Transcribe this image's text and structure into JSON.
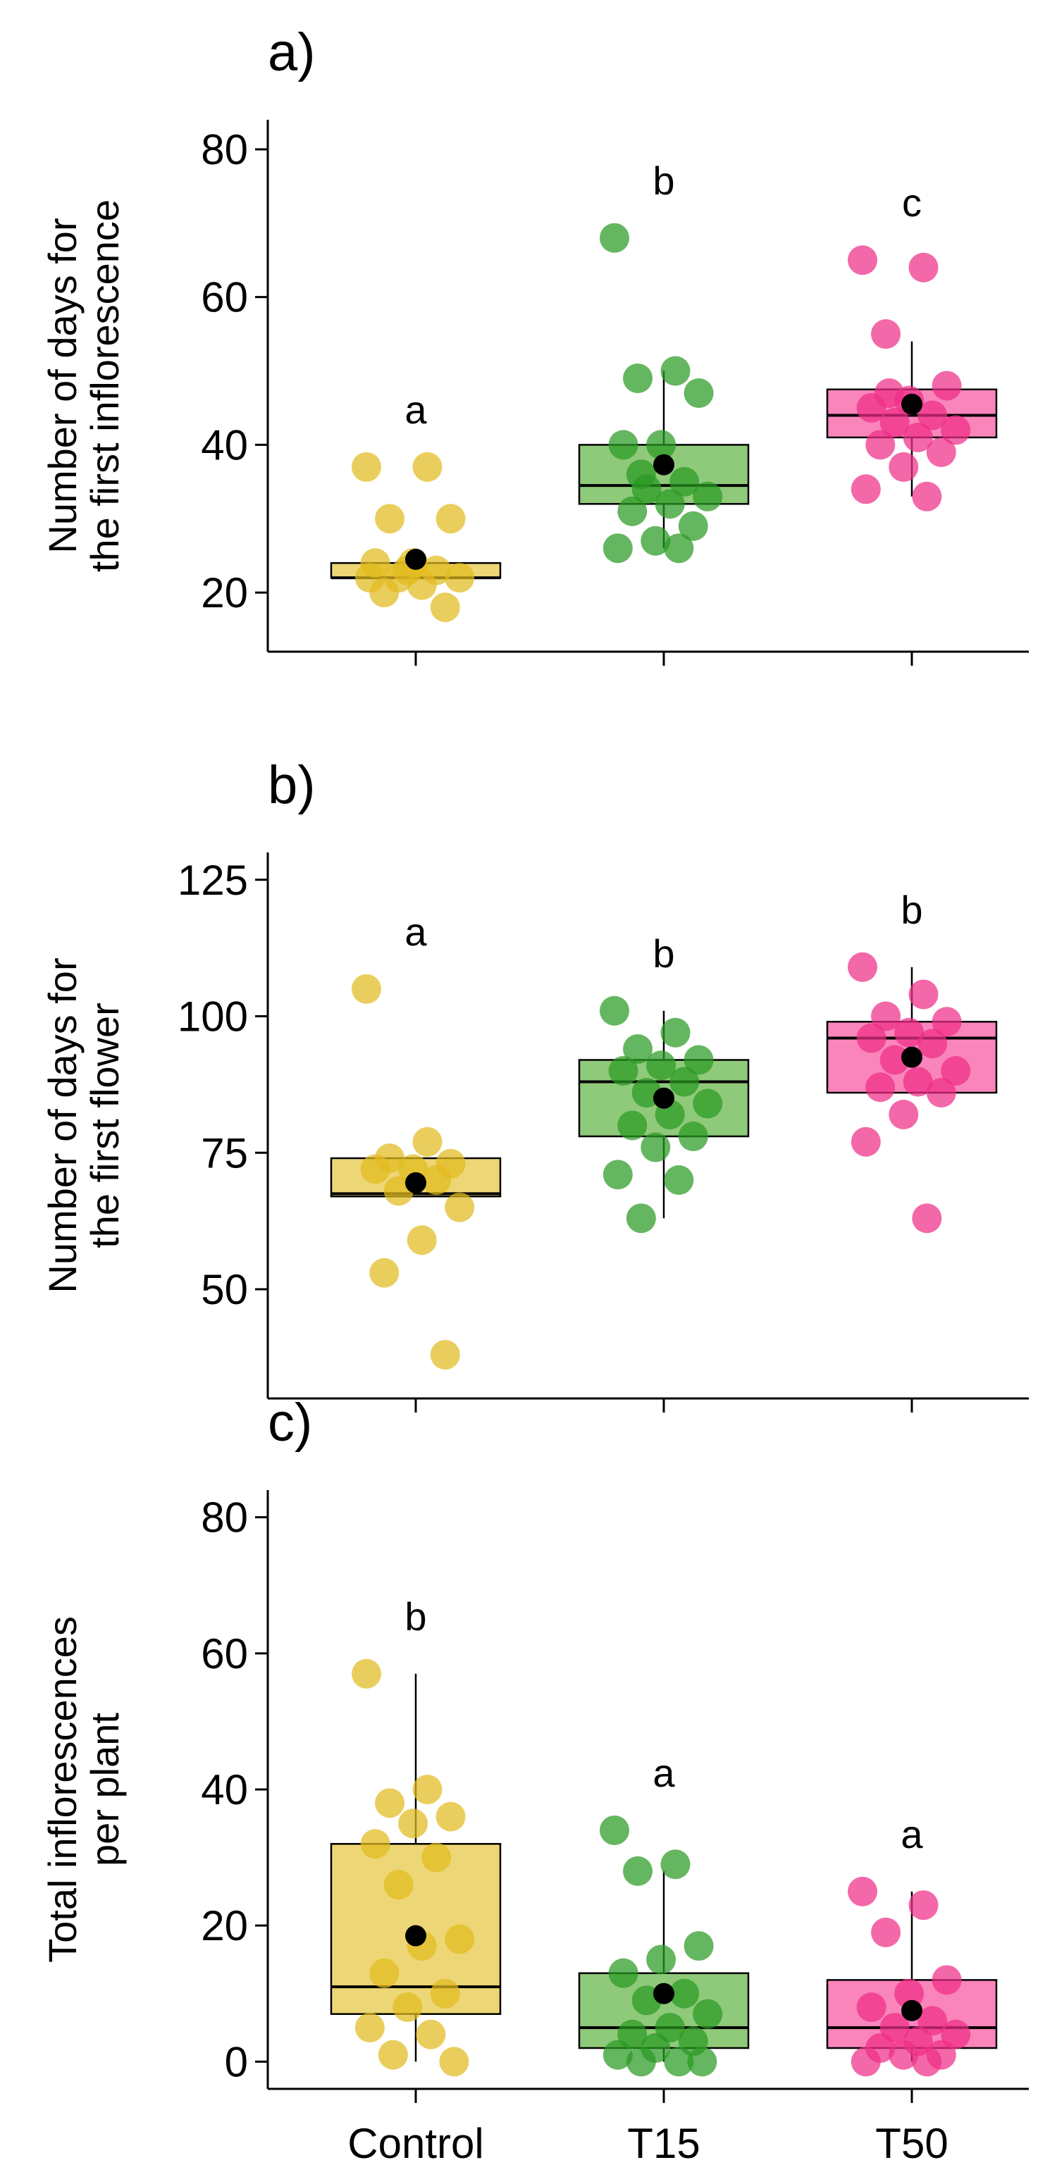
{
  "chart_data": [
    {
      "type": "boxplot",
      "panel_label": "a)",
      "ylabel": [
        "Number of days for",
        "the first inflorescence"
      ],
      "categories": [
        "Control",
        "T15",
        "T50"
      ],
      "show_xticklabels": false,
      "ylim": [
        12,
        84
      ],
      "yticks": [
        20,
        40,
        60,
        80
      ],
      "colors": {
        "fill": [
          "#edd675",
          "#8fc97a",
          "#f985bb"
        ],
        "points": [
          "#e2bb1e",
          "#2a9a23",
          "#ef2e86"
        ]
      },
      "groups": [
        {
          "name": "Control",
          "letter": "a",
          "q1": 22,
          "median": 22,
          "q3": 24,
          "whisker_low": 22,
          "whisker_high": 24,
          "mean": 24.5,
          "points": [
            37,
            37,
            30,
            30,
            24,
            24,
            23,
            22,
            22,
            21,
            20,
            18,
            23,
            22
          ]
        },
        {
          "name": "T15",
          "letter": "b",
          "q1": 32,
          "median": 34.5,
          "q3": 40,
          "whisker_low": 26,
          "whisker_high": 50,
          "mean": 37.3,
          "points": [
            68,
            50,
            49,
            47,
            40,
            40,
            35,
            34,
            33,
            32,
            31,
            29,
            27,
            26,
            26,
            36
          ]
        },
        {
          "name": "T50",
          "letter": "c",
          "q1": 41,
          "median": 44,
          "q3": 47.5,
          "whisker_low": 33,
          "whisker_high": 54,
          "mean": 45.5,
          "points": [
            65,
            64,
            55,
            48,
            46,
            45,
            44,
            43,
            42,
            41,
            40,
            39,
            37,
            34,
            33,
            47
          ]
        }
      ]
    },
    {
      "type": "boxplot",
      "panel_label": "b)",
      "ylabel": [
        "Number of days for",
        "the first flower"
      ],
      "categories": [
        "Control",
        "T15",
        "T50"
      ],
      "show_xticklabels": false,
      "ylim": [
        30,
        130
      ],
      "yticks": [
        50,
        75,
        100,
        125
      ],
      "colors": {
        "fill": [
          "#edd675",
          "#8fc97a",
          "#f985bb"
        ],
        "points": [
          "#e2bb1e",
          "#2a9a23",
          "#ef2e86"
        ]
      },
      "groups": [
        {
          "name": "Control",
          "letter": "a",
          "q1": 67,
          "median": 67.5,
          "q3": 74,
          "whisker_low": 67,
          "whisker_high": 74,
          "mean": 69.5,
          "points": [
            105,
            77,
            74,
            73,
            72,
            72,
            70,
            68,
            65,
            59,
            53,
            38
          ]
        },
        {
          "name": "T15",
          "letter": "b",
          "q1": 78,
          "median": 88,
          "q3": 92,
          "whisker_low": 63,
          "whisker_high": 101,
          "mean": 85,
          "points": [
            101,
            97,
            94,
            92,
            91,
            90,
            88,
            86,
            84,
            82,
            80,
            78,
            76,
            71,
            70,
            63
          ]
        },
        {
          "name": "T50",
          "letter": "b",
          "q1": 86,
          "median": 96,
          "q3": 99,
          "whisker_low": 86,
          "whisker_high": 109,
          "mean": 92.5,
          "points": [
            109,
            104,
            100,
            99,
            97,
            96,
            95,
            92,
            90,
            88,
            87,
            86,
            82,
            77,
            63
          ]
        }
      ]
    },
    {
      "type": "boxplot",
      "panel_label": "c)",
      "ylabel": [
        "Total inflorescences",
        "per plant"
      ],
      "categories": [
        "Control",
        "T15",
        "T50"
      ],
      "show_xticklabels": true,
      "ylim": [
        -4,
        84
      ],
      "yticks": [
        0,
        20,
        40,
        60,
        80
      ],
      "colors": {
        "fill": [
          "#edd675",
          "#8fc97a",
          "#f985bb"
        ],
        "points": [
          "#e2bb1e",
          "#2a9a23",
          "#ef2e86"
        ]
      },
      "groups": [
        {
          "name": "Control",
          "letter": "b",
          "q1": 7,
          "median": 11,
          "q3": 32,
          "whisker_low": 0,
          "whisker_high": 57,
          "mean": 18.5,
          "points": [
            57,
            40,
            38,
            36,
            35,
            32,
            30,
            26,
            18,
            17,
            13,
            10,
            8,
            5,
            4,
            1,
            0
          ]
        },
        {
          "name": "T15",
          "letter": "a",
          "q1": 2,
          "median": 5,
          "q3": 13,
          "whisker_low": 0,
          "whisker_high": 28,
          "mean": 10,
          "points": [
            34,
            29,
            28,
            17,
            15,
            13,
            10,
            9,
            7,
            5,
            4,
            3,
            2,
            1,
            0,
            0,
            0
          ]
        },
        {
          "name": "T50",
          "letter": "a",
          "q1": 2,
          "median": 5,
          "q3": 12,
          "whisker_low": 0,
          "whisker_high": 25,
          "mean": 7.5,
          "points": [
            25,
            23,
            19,
            12,
            10,
            8,
            6,
            5,
            4,
            3,
            2,
            1,
            1,
            0,
            0
          ]
        }
      ]
    }
  ]
}
